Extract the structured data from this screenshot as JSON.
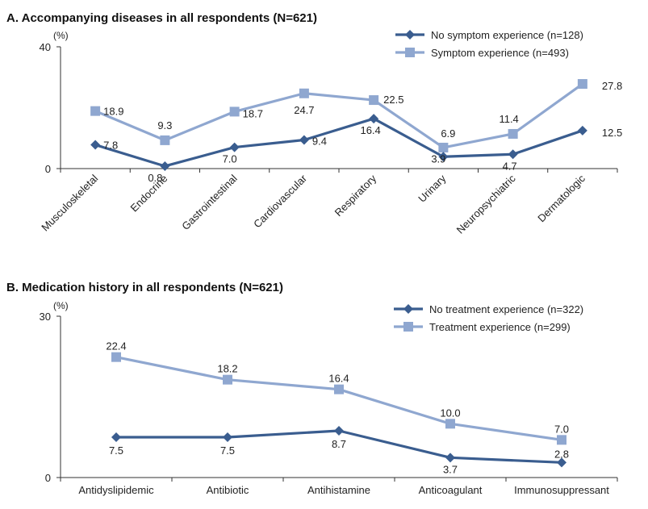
{
  "chart_data": [
    {
      "type": "line",
      "title": "A. Accompanying diseases in all respondents (N=621)",
      "unit": "(%)",
      "ylim": [
        0,
        40
      ],
      "yticks": [
        "0",
        "40"
      ],
      "categories": [
        "Musculoskeletal",
        "Endocrine",
        "Gastrointestinal",
        "Cardiovascular",
        "Respiratory",
        "Urinary",
        "Neuropsychiatric",
        "Dermatologic"
      ],
      "legend_position": "top-right",
      "series": [
        {
          "name": "No symptom experience (n=128)",
          "marker": "diamond",
          "color": "#3a5d8f",
          "values": [
            7.8,
            0.8,
            7.0,
            9.4,
            16.4,
            3.9,
            4.7,
            12.5
          ],
          "labels": [
            "7.8",
            "0.8",
            "7.0",
            "9.4",
            "16.4",
            "3.9",
            "4.7",
            "12.5"
          ]
        },
        {
          "name": "Symptom experience (n=493)",
          "marker": "square",
          "color": "#8fa7d0",
          "values": [
            18.9,
            9.3,
            18.7,
            24.7,
            22.5,
            6.9,
            11.4,
            27.8
          ],
          "labels": [
            "18.9",
            "9.3",
            "18.7",
            "24.7",
            "22.5",
            "6.9",
            "11.4",
            "27.8"
          ]
        }
      ]
    },
    {
      "type": "line",
      "title": "B. Medication history in all respondents (N=621)",
      "unit": "(%)",
      "ylim": [
        0,
        30
      ],
      "yticks": [
        "0",
        "30"
      ],
      "categories": [
        "Antidyslipidemic",
        "Antibiotic",
        "Antihistamine",
        "Anticoagulant",
        "Immunosuppressant"
      ],
      "legend_position": "top-right",
      "series": [
        {
          "name": "No treatment experience (n=322)",
          "marker": "diamond",
          "color": "#3a5d8f",
          "values": [
            7.5,
            7.5,
            8.7,
            3.7,
            2.8
          ],
          "labels": [
            "7.5",
            "7.5",
            "8.7",
            "3.7",
            "2.8"
          ]
        },
        {
          "name": "Treatment experience (n=299)",
          "marker": "square",
          "color": "#8fa7d0",
          "values": [
            22.4,
            18.2,
            16.4,
            10.0,
            7.0
          ],
          "labels": [
            "22.4",
            "18.2",
            "16.4",
            "10.0",
            "7.0"
          ]
        }
      ]
    }
  ]
}
